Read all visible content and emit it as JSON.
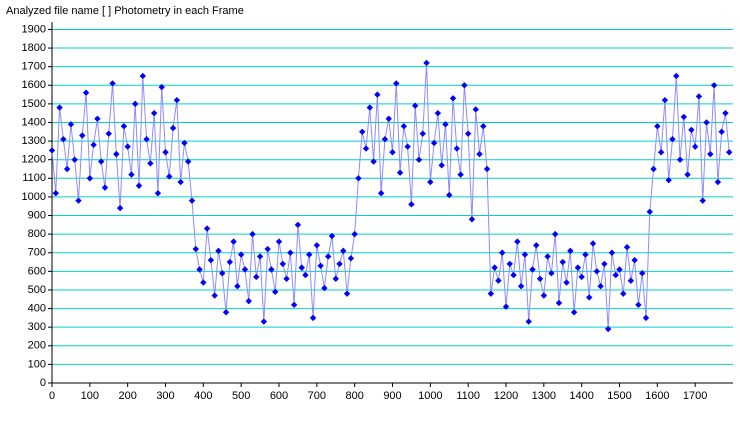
{
  "chart_data": {
    "type": "line",
    "title": "Analyzed file name [ ]   Photometry in each Frame",
    "x": [
      0,
      10,
      20,
      30,
      40,
      50,
      60,
      70,
      80,
      90,
      100,
      110,
      120,
      130,
      140,
      150,
      160,
      170,
      180,
      190,
      200,
      210,
      220,
      230,
      240,
      250,
      260,
      270,
      280,
      290,
      300,
      310,
      320,
      330,
      340,
      350,
      360,
      370,
      380,
      390,
      400,
      410,
      420,
      430,
      440,
      450,
      460,
      470,
      480,
      490,
      500,
      510,
      520,
      530,
      540,
      550,
      560,
      570,
      580,
      590,
      600,
      610,
      620,
      630,
      640,
      650,
      660,
      670,
      680,
      690,
      700,
      710,
      720,
      730,
      740,
      750,
      760,
      770,
      780,
      790,
      800,
      810,
      820,
      830,
      840,
      850,
      860,
      870,
      880,
      890,
      900,
      910,
      920,
      930,
      940,
      950,
      960,
      970,
      980,
      990,
      1000,
      1010,
      1020,
      1030,
      1040,
      1050,
      1060,
      1070,
      1080,
      1090,
      1100,
      1110,
      1120,
      1130,
      1140,
      1150,
      1160,
      1170,
      1180,
      1190,
      1200,
      1210,
      1220,
      1230,
      1240,
      1250,
      1260,
      1270,
      1280,
      1290,
      1300,
      1310,
      1320,
      1330,
      1340,
      1350,
      1360,
      1370,
      1380,
      1390,
      1400,
      1410,
      1420,
      1430,
      1440,
      1450,
      1460,
      1470,
      1480,
      1490,
      1500,
      1510,
      1520,
      1530,
      1540,
      1550,
      1560,
      1570,
      1580,
      1590,
      1600,
      1610,
      1620,
      1630,
      1640,
      1650,
      1660,
      1670,
      1680,
      1690,
      1700,
      1710,
      1720,
      1730,
      1740,
      1750,
      1760,
      1770,
      1780,
      1790
    ],
    "series": [
      {
        "color": "#0000ff",
        "line_color": "#8c8cff",
        "values": [
          1250,
          1020,
          1480,
          1310,
          1150,
          1390,
          1200,
          980,
          1330,
          1560,
          1100,
          1280,
          1420,
          1190,
          1050,
          1340,
          1610,
          1230,
          940,
          1380,
          1270,
          1120,
          1500,
          1060,
          1650,
          1310,
          1180,
          1450,
          1020,
          1590,
          1240,
          1110,
          1370,
          1520,
          1080,
          1290,
          1190,
          980,
          720,
          610,
          540,
          830,
          660,
          470,
          710,
          590,
          380,
          650,
          760,
          520,
          690,
          610,
          440,
          800,
          570,
          680,
          330,
          720,
          610,
          490,
          760,
          640,
          560,
          700,
          420,
          850,
          620,
          580,
          690,
          350,
          740,
          630,
          510,
          680,
          790,
          560,
          640,
          710,
          480,
          670,
          800,
          1100,
          1350,
          1260,
          1480,
          1190,
          1550,
          1020,
          1310,
          1420,
          1240,
          1610,
          1130,
          1380,
          1270,
          960,
          1490,
          1200,
          1340,
          1720,
          1080,
          1290,
          1450,
          1170,
          1390,
          1010,
          1530,
          1260,
          1120,
          1600,
          1340,
          880,
          1470,
          1230,
          1380,
          1150,
          480,
          620,
          550,
          700,
          410,
          640,
          580,
          760,
          520,
          690,
          330,
          610,
          740,
          560,
          470,
          680,
          590,
          800,
          430,
          650,
          540,
          710,
          380,
          620,
          570,
          690,
          460,
          750,
          600,
          520,
          640,
          290,
          700,
          580,
          610,
          480,
          730,
          550,
          660,
          420,
          590,
          350,
          920,
          1150,
          1380,
          1240,
          1520,
          1090,
          1310,
          1650,
          1200,
          1430,
          1120,
          1360,
          1270,
          1540,
          980,
          1400,
          1230,
          1600,
          1080,
          1350,
          1450,
          1240
        ]
      }
    ],
    "xlim": [
      0,
      1800
    ],
    "ylim": [
      0,
      1940
    ],
    "xticks": [
      0,
      100,
      200,
      300,
      400,
      500,
      600,
      700,
      800,
      900,
      1000,
      1100,
      1200,
      1300,
      1400,
      1500,
      1600,
      1700
    ],
    "yticks": [
      0,
      100,
      200,
      300,
      400,
      500,
      600,
      700,
      800,
      900,
      1000,
      1100,
      1200,
      1300,
      1400,
      1500,
      1600,
      1700,
      1800,
      1900
    ],
    "grid": true,
    "grid_color": "#00d0d0"
  }
}
